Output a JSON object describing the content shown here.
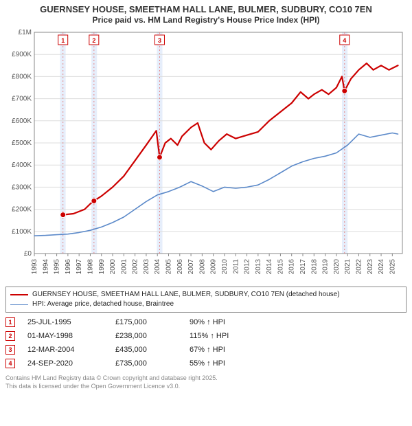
{
  "title_line1": "GUERNSEY HOUSE, SMEETHAM HALL LANE, BULMER, SUDBURY, CO10 7EN",
  "title_line2": "Price paid vs. HM Land Registry's House Price Index (HPI)",
  "chart": {
    "type": "line",
    "background_color": "#ffffff",
    "grid_color": "#dddddd",
    "axis_color": "#888888",
    "highlight_band_color": "#e6eefb",
    "y": {
      "min": 0,
      "max": 1000000,
      "ticks": [
        0,
        100000,
        200000,
        300000,
        400000,
        500000,
        600000,
        700000,
        800000,
        900000,
        1000000
      ],
      "tick_labels": [
        "£0",
        "£100K",
        "£200K",
        "£300K",
        "£400K",
        "£500K",
        "£600K",
        "£700K",
        "£800K",
        "£900K",
        "£1M"
      ],
      "label_fontsize": 10,
      "label_color": "#555555"
    },
    "x": {
      "min": 1993,
      "max": 2025.9,
      "ticks": [
        1993,
        1994,
        1995,
        1996,
        1997,
        1998,
        1999,
        2000,
        2001,
        2002,
        2003,
        2004,
        2005,
        2006,
        2007,
        2008,
        2009,
        2010,
        2011,
        2012,
        2013,
        2014,
        2015,
        2016,
        2017,
        2018,
        2019,
        2020,
        2021,
        2022,
        2023,
        2024,
        2025
      ],
      "label_fontsize": 10,
      "label_color": "#555555",
      "label_rotation": -90
    },
    "highlight_bands": [
      {
        "from": 1995.3,
        "to": 1995.8
      },
      {
        "from": 1998.1,
        "to": 1998.6
      },
      {
        "from": 2003.95,
        "to": 2004.45
      },
      {
        "from": 2020.5,
        "to": 2021.0
      }
    ],
    "series": [
      {
        "name": "price_paid",
        "color": "#cc0000",
        "width": 2.2,
        "points": [
          [
            1995.56,
            175000
          ],
          [
            1996.5,
            180000
          ],
          [
            1997.5,
            200000
          ],
          [
            1998.0,
            225000
          ],
          [
            1998.33,
            238000
          ],
          [
            1999.0,
            260000
          ],
          [
            2000.0,
            300000
          ],
          [
            2001.0,
            350000
          ],
          [
            2002.0,
            420000
          ],
          [
            2003.0,
            490000
          ],
          [
            2003.9,
            555000
          ],
          [
            2004.2,
            435000
          ],
          [
            2004.7,
            500000
          ],
          [
            2005.2,
            520000
          ],
          [
            2005.8,
            490000
          ],
          [
            2006.2,
            530000
          ],
          [
            2007.0,
            570000
          ],
          [
            2007.6,
            590000
          ],
          [
            2008.2,
            500000
          ],
          [
            2008.8,
            470000
          ],
          [
            2009.5,
            510000
          ],
          [
            2010.2,
            540000
          ],
          [
            2011.0,
            520000
          ],
          [
            2012.0,
            535000
          ],
          [
            2013.0,
            550000
          ],
          [
            2014.0,
            600000
          ],
          [
            2015.0,
            640000
          ],
          [
            2016.0,
            680000
          ],
          [
            2016.8,
            730000
          ],
          [
            2017.5,
            700000
          ],
          [
            2018.0,
            720000
          ],
          [
            2018.7,
            740000
          ],
          [
            2019.3,
            720000
          ],
          [
            2020.0,
            750000
          ],
          [
            2020.5,
            800000
          ],
          [
            2020.73,
            735000
          ],
          [
            2021.3,
            790000
          ],
          [
            2022.0,
            830000
          ],
          [
            2022.7,
            860000
          ],
          [
            2023.3,
            830000
          ],
          [
            2024.0,
            850000
          ],
          [
            2024.7,
            830000
          ],
          [
            2025.5,
            850000
          ]
        ]
      },
      {
        "name": "hpi",
        "color": "#5b89c9",
        "width": 1.6,
        "points": [
          [
            1993.0,
            80000
          ],
          [
            1994.0,
            82000
          ],
          [
            1995.0,
            85000
          ],
          [
            1996.0,
            88000
          ],
          [
            1997.0,
            95000
          ],
          [
            1998.0,
            105000
          ],
          [
            1999.0,
            120000
          ],
          [
            2000.0,
            140000
          ],
          [
            2001.0,
            165000
          ],
          [
            2002.0,
            200000
          ],
          [
            2003.0,
            235000
          ],
          [
            2004.0,
            265000
          ],
          [
            2005.0,
            280000
          ],
          [
            2006.0,
            300000
          ],
          [
            2007.0,
            325000
          ],
          [
            2008.0,
            305000
          ],
          [
            2009.0,
            280000
          ],
          [
            2010.0,
            300000
          ],
          [
            2011.0,
            295000
          ],
          [
            2012.0,
            300000
          ],
          [
            2013.0,
            310000
          ],
          [
            2014.0,
            335000
          ],
          [
            2015.0,
            365000
          ],
          [
            2016.0,
            395000
          ],
          [
            2017.0,
            415000
          ],
          [
            2018.0,
            430000
          ],
          [
            2019.0,
            440000
          ],
          [
            2020.0,
            455000
          ],
          [
            2021.0,
            490000
          ],
          [
            2022.0,
            540000
          ],
          [
            2023.0,
            525000
          ],
          [
            2024.0,
            535000
          ],
          [
            2025.0,
            545000
          ],
          [
            2025.5,
            540000
          ]
        ]
      }
    ],
    "sale_markers": [
      {
        "n": 1,
        "x": 1995.56,
        "y": 175000
      },
      {
        "n": 2,
        "x": 1998.33,
        "y": 238000
      },
      {
        "n": 3,
        "x": 2004.2,
        "y": 435000
      },
      {
        "n": 4,
        "x": 2020.73,
        "y": 735000
      }
    ],
    "marker_color": "#cc0000",
    "marker_fill": "#cc0000",
    "marker_badge_border": "#cc0000",
    "marker_badge_text": "#cc0000",
    "marker_badge_bg": "#ffffff",
    "marker_vline_color": "#e58a8a",
    "marker_badge_fontsize": 9
  },
  "legend": {
    "items": [
      {
        "color": "#cc0000",
        "width": 2.2,
        "label": "GUERNSEY HOUSE, SMEETHAM HALL LANE, BULMER, SUDBURY, CO10 7EN (detached house)"
      },
      {
        "color": "#5b89c9",
        "width": 1.6,
        "label": "HPI: Average price, detached house, Braintree"
      }
    ]
  },
  "sales_table": {
    "rows": [
      {
        "n": "1",
        "date": "25-JUL-1995",
        "price": "£175,000",
        "hpi": "90% ↑ HPI"
      },
      {
        "n": "2",
        "date": "01-MAY-1998",
        "price": "£238,000",
        "hpi": "115% ↑ HPI"
      },
      {
        "n": "3",
        "date": "12-MAR-2004",
        "price": "£435,000",
        "hpi": "67% ↑ HPI"
      },
      {
        "n": "4",
        "date": "24-SEP-2020",
        "price": "£735,000",
        "hpi": "55% ↑ HPI"
      }
    ],
    "badge_border": "#cc0000",
    "badge_text": "#cc0000"
  },
  "footer": {
    "line1": "Contains HM Land Registry data © Crown copyright and database right 2025.",
    "line2": "This data is licensed under the Open Government Licence v3.0."
  }
}
